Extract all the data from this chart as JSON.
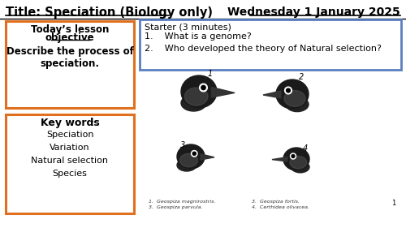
{
  "bg_color": "#ffffff",
  "title_left": "Title: Speciation (Biology only)",
  "title_right": "Wednesday 1 January 2025",
  "obj_header_line1": "Today’s lesson",
  "obj_header_line2": "objective",
  "obj_body": "Describe the process of\nspeciation.",
  "obj_box_color": "#e07020",
  "starter_header": "Starter (3 minutes)",
  "starter_q1": "1.    What is a genome?",
  "starter_q2": "2.    Who developed the theory of Natural selection?",
  "starter_box_color": "#5b7fbf",
  "kw_header": "Key words",
  "kw_colon": ":",
  "kw_words": [
    "Speciation",
    "Variation",
    "Natural selection",
    "Species"
  ],
  "kw_box_color": "#e07020",
  "caption_left1": "1.  Geospiza magnirostris.",
  "caption_left2": "3.  Geospiza parvula.",
  "caption_right1": "3.  Geospiza fortis.",
  "caption_right2": "4.  Certhidea olivacea.",
  "page_num": "1"
}
